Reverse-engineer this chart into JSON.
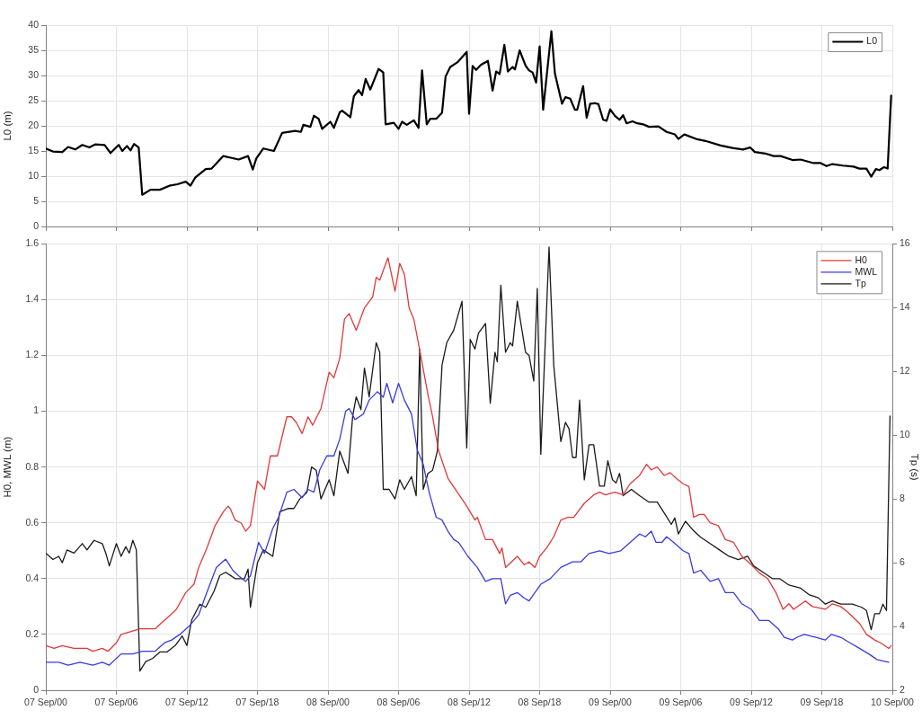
{
  "chart_data": [
    {
      "type": "line",
      "ylabel": "L0 (m)",
      "xlim": [
        "--09-07T00:00",
        "--09-10T00:00"
      ],
      "xticks": [
        {
          "value": "--09-07T00:00",
          "label": null
        },
        {
          "value": "--09-07T06:00",
          "label": null
        },
        {
          "value": "--09-07T12:00",
          "label": null
        },
        {
          "value": "--09-07T18:00",
          "label": null
        },
        {
          "value": "--09-08T00:00",
          "label": null
        },
        {
          "value": "--09-08T06:00",
          "label": null
        },
        {
          "value": "--09-08T12:00",
          "label": null
        },
        {
          "value": "--09-08T18:00",
          "label": null
        },
        {
          "value": "--09-09T00:00",
          "label": null
        },
        {
          "value": "--09-09T06:00",
          "label": null
        },
        {
          "value": "--09-09T12:00",
          "label": null
        },
        {
          "value": "--09-09T18:00",
          "label": null
        },
        {
          "value": "--09-10T00:00",
          "label": null
        }
      ],
      "ylim": [
        0,
        40
      ],
      "yticks": [
        0,
        5,
        10,
        15,
        20,
        25,
        30,
        35,
        40
      ],
      "grid": true,
      "legend": "top right",
      "marker": "none",
      "tick_labels": "y",
      "series": [
        {
          "name": "L0",
          "color": "#000000",
          "x": [
            "--09-07T00:00",
            "--09-07T00:36",
            "--09-07T01:24",
            "--09-07T01:54",
            "--09-07T02:30",
            "--09-07T03:06",
            "--09-07T03:42",
            "--09-07T04:12",
            "--09-07T05:00",
            "--09-07T05:30",
            "--09-07T06:12",
            "--09-07T06:30",
            "--09-07T06:54",
            "--09-07T07:12",
            "--09-07T07:30",
            "--09-07T07:54",
            "--09-07T08:12",
            "--09-07T08:54",
            "--09-07T09:42",
            "--09-07T10:30",
            "--09-07T11:12",
            "--09-07T11:54",
            "--09-07T12:18",
            "--09-07T12:42",
            "--09-07T13:36",
            "--09-07T14:06",
            "--09-07T15:06",
            "--09-07T16:24",
            "--09-07T17:12",
            "--09-07T17:36",
            "--09-07T17:54",
            "--09-07T18:30",
            "--09-07T19:24",
            "--09-07T20:06",
            "--09-07T21:12",
            "--09-07T21:42",
            "--09-07T21:54",
            "--09-07T22:30",
            "--09-07T22:48",
            "--09-07T23:12",
            "--09-07T23:30",
            "--09-08T00:12",
            "--09-08T00:30",
            "--09-08T01:00",
            "--09-08T01:12",
            "--09-08T01:54",
            "--09-08T02:12",
            "--09-08T02:36",
            "--09-08T02:54",
            "--09-08T03:12",
            "--09-08T03:36",
            "--09-08T04:18",
            "--09-08T04:42",
            "--09-08T04:54",
            "--09-08T05:36",
            "--09-08T06:00",
            "--09-08T06:18",
            "--09-08T06:42",
            "--09-08T07:18",
            "--09-08T07:42",
            "--09-08T08:00",
            "--09-08T08:24",
            "--09-08T08:42",
            "--09-08T09:12",
            "--09-08T09:42",
            "--09-08T10:00",
            "--09-08T10:24",
            "--09-08T11:00",
            "--09-08T11:48",
            "--09-08T12:00",
            "--09-08T12:18",
            "--09-08T12:36",
            "--09-08T13:00",
            "--09-08T13:36",
            "--09-08T14:00",
            "--09-08T14:18",
            "--09-08T14:36",
            "--09-08T15:00",
            "--09-08T15:18",
            "--09-08T15:42",
            "--09-08T15:54",
            "--09-08T16:18",
            "--09-08T16:48",
            "--09-08T17:06",
            "--09-08T17:24",
            "--09-08T17:42",
            "--09-08T18:00",
            "--09-08T18:18",
            "--09-08T19:00",
            "--09-08T19:18",
            "--09-08T19:54",
            "--09-08T20:12",
            "--09-08T20:36",
            "--09-08T21:00",
            "--09-08T21:12",
            "--09-08T21:42",
            "--09-08T22:00",
            "--09-08T22:18",
            "--09-08T22:42",
            "--09-08T23:00",
            "--09-08T23:24",
            "--09-08T23:42",
            "--09-09T00:00",
            "--09-09T00:24",
            "--09-09T00:48",
            "--09-09T01:06",
            "--09-09T01:24",
            "--09-09T01:54",
            "--09-09T02:18",
            "--09-09T02:48",
            "--09-09T03:18",
            "--09-09T04:06",
            "--09-09T04:48",
            "--09-09T05:30",
            "--09-09T05:48",
            "--09-09T06:18",
            "--09-09T07:18",
            "--09-09T08:06",
            "--09-09T09:24",
            "--09-09T10:24",
            "--09-09T11:18",
            "--09-09T11:54",
            "--09-09T12:18",
            "--09-09T13:12",
            "--09-09T13:54",
            "--09-09T14:30",
            "--09-09T15:30",
            "--09-09T16:12",
            "--09-09T17:18",
            "--09-09T17:54",
            "--09-09T18:24",
            "--09-09T18:54",
            "--09-09T19:48",
            "--09-09T20:42",
            "--09-09T21:12",
            "--09-09T21:48",
            "--09-09T22:12",
            "--09-09T22:36",
            "--09-09T22:54",
            "--09-09T23:18",
            "--09-09T23:36",
            "--09-09T23:54"
          ],
          "values": [
            15.5,
            14.9,
            14.8,
            15.8,
            15.3,
            16.2,
            15.7,
            16.3,
            16.2,
            14.6,
            16.2,
            15,
            16,
            15.1,
            16.4,
            15.7,
            6.3,
            7.3,
            7.3,
            8.1,
            8.4,
            8.9,
            8.1,
            9.7,
            11.4,
            11.5,
            14,
            13.3,
            14,
            11.3,
            13.5,
            15.5,
            15,
            18.6,
            19,
            18.8,
            20.2,
            19.8,
            22,
            21.4,
            19.4,
            20.8,
            19.6,
            22.7,
            23,
            21.7,
            25.9,
            27.1,
            26.1,
            29.3,
            27.2,
            31.3,
            30.6,
            20.3,
            20.6,
            19.4,
            20.8,
            20.2,
            21.1,
            19.6,
            31,
            20.3,
            21.4,
            21.4,
            22.6,
            29.8,
            31.7,
            32.6,
            34.7,
            22.4,
            31.9,
            31.1,
            32.1,
            32.9,
            27,
            30.8,
            30.3,
            36.1,
            30.8,
            31.7,
            31.2,
            35,
            32,
            31,
            30.6,
            28.6,
            35.8,
            23.2,
            38.8,
            30.4,
            24.4,
            25.7,
            25.4,
            23.2,
            23.2,
            27.9,
            21.6,
            24.4,
            24.5,
            24.3,
            21.2,
            21,
            23.3,
            22,
            21.2,
            22.1,
            20.5,
            20.9,
            20.5,
            20.3,
            19.8,
            19.9,
            18.8,
            18.3,
            17.4,
            18.3,
            17.4,
            17,
            16.1,
            15.6,
            15.3,
            15.7,
            14.8,
            14.5,
            14,
            14,
            13.2,
            13.3,
            12.6,
            12.6,
            12,
            12.4,
            12.1,
            11.9,
            11.5,
            11.5,
            9.9,
            11.4,
            11.2,
            11.8,
            11.5,
            26
          ]
        }
      ]
    },
    {
      "type": "line",
      "ylabel": "H0, MWL (m)",
      "y2label": "Tp (s)",
      "xlim": [
        "--09-07T00:00",
        "--09-10T00:00"
      ],
      "xticks": [
        {
          "value": "--09-07T00:00",
          "label": "07 Sep/00"
        },
        {
          "value": "--09-07T06:00",
          "label": "07 Sep/06"
        },
        {
          "value": "--09-07T12:00",
          "label": "07 Sep/12"
        },
        {
          "value": "--09-07T18:00",
          "label": "07 Sep/18"
        },
        {
          "value": "--09-08T00:00",
          "label": "08 Sep/00"
        },
        {
          "value": "--09-08T06:00",
          "label": "08 Sep/06"
        },
        {
          "value": "--09-08T12:00",
          "label": "08 Sep/12"
        },
        {
          "value": "--09-08T18:00",
          "label": "08 Sep/18"
        },
        {
          "value": "--09-09T00:00",
          "label": "09 Sep/00"
        },
        {
          "value": "--09-09T06:00",
          "label": "09 Sep/06"
        },
        {
          "value": "--09-09T12:00",
          "label": "09 Sep/12"
        },
        {
          "value": "--09-09T18:00",
          "label": "09 Sep/18"
        },
        {
          "value": "--09-10T00:00",
          "label": "10 Sep/00"
        }
      ],
      "ylim": [
        0,
        1.6
      ],
      "yticks": [
        0,
        0.2,
        0.4,
        0.6,
        0.8,
        1,
        1.2,
        1.4,
        1.6
      ],
      "y2lim": [
        2,
        16
      ],
      "y2ticks": [
        2,
        4,
        6,
        8,
        10,
        12,
        14,
        16
      ],
      "grid": true,
      "legend": "top right",
      "marker": "none",
      "series": [
        {
          "name": "H0",
          "color": "#e0393b",
          "x": [
            "--09-07T00:00",
            "--09-07T00:42",
            "--09-07T01:24",
            "--09-07T02:24",
            "--09-07T03:30",
            "--09-07T04:00",
            "--09-07T04:48",
            "--09-07T05:18",
            "--09-07T06:00",
            "--09-07T06:24",
            "--09-07T07:12",
            "--09-07T08:00",
            "--09-07T09:18",
            "--09-07T09:48",
            "--09-07T10:36",
            "--09-07T11:06",
            "--09-07T11:54",
            "--09-07T12:36",
            "--09-07T13:00",
            "--09-07T13:42",
            "--09-07T14:24",
            "--09-07T15:06",
            "--09-07T15:30",
            "--09-07T15:42",
            "--09-07T16:06",
            "--09-07T16:36",
            "--09-07T17:00",
            "--09-07T17:24",
            "--09-07T18:00",
            "--09-07T18:36",
            "--09-07T19:06",
            "--09-07T19:42",
            "--09-07T20:06",
            "--09-07T20:30",
            "--09-07T20:54",
            "--09-07T21:18",
            "--09-07T21:48",
            "--09-07T22:18",
            "--09-07T22:42",
            "--09-07T23:24",
            "--09-08T00:06",
            "--09-08T00:30",
            "--09-08T01:00",
            "--09-08T01:24",
            "--09-08T01:48",
            "--09-08T02:24",
            "--09-08T03:06",
            "--09-08T03:48",
            "--09-08T04:06",
            "--09-08T04:24",
            "--09-08T05:06",
            "--09-08T05:42",
            "--09-08T06:06",
            "--09-08T06:30",
            "--09-08T06:54",
            "--09-08T07:18",
            "--09-08T07:48",
            "--09-08T08:30",
            "--09-08T08:54",
            "--09-08T09:24",
            "--09-08T10:12",
            "--09-08T11:00",
            "--09-08T11:48",
            "--09-08T12:30",
            "--09-08T12:42",
            "--09-08T13:24",
            "--09-08T14:00",
            "--09-08T14:36",
            "--09-08T14:48",
            "--09-08T15:06",
            "--09-08T15:36",
            "--09-08T16:06",
            "--09-08T16:42",
            "--09-08T17:06",
            "--09-08T17:36",
            "--09-08T18:00",
            "--09-08T18:36",
            "--09-08T19:12",
            "--09-08T19:48",
            "--09-08T20:24",
            "--09-08T20:54",
            "--09-08T21:48",
            "--09-08T22:36",
            "--09-08T23:06",
            "--09-08T23:36",
            "--09-09T00:24",
            "--09-09T01:06",
            "--09-09T01:42",
            "--09-09T02:30",
            "--09-09T03:06",
            "--09-09T03:30",
            "--09-09T04:00",
            "--09-09T04:36",
            "--09-09T05:06",
            "--09-09T05:36",
            "--09-09T06:12",
            "--09-09T06:42",
            "--09-09T07:06",
            "--09-09T07:36",
            "--09-09T08:00",
            "--09-09T08:30",
            "--09-09T09:12",
            "--09-09T09:48",
            "--09-09T10:30",
            "--09-09T11:12",
            "--09-09T12:00",
            "--09-09T12:42",
            "--09-09T13:24",
            "--09-09T14:06",
            "--09-09T14:42",
            "--09-09T15:12",
            "--09-09T15:36",
            "--09-09T16:36",
            "--09-09T17:12",
            "--09-09T18:18",
            "--09-09T18:54",
            "--09-09T19:36",
            "--09-09T20:12",
            "--09-09T21:12",
            "--09-09T21:48",
            "--09-09T22:30",
            "--09-09T23:00",
            "--09-09T23:42",
            "--09-09T23:54"
          ],
          "values": [
            0.16,
            0.15,
            0.16,
            0.15,
            0.15,
            0.14,
            0.15,
            0.14,
            0.17,
            0.2,
            0.21,
            0.22,
            0.22,
            0.24,
            0.27,
            0.29,
            0.35,
            0.38,
            0.44,
            0.51,
            0.59,
            0.64,
            0.66,
            0.65,
            0.61,
            0.6,
            0.57,
            0.59,
            0.75,
            0.72,
            0.84,
            0.84,
            0.91,
            0.98,
            0.98,
            0.96,
            0.92,
            0.98,
            0.95,
            1.01,
            1.14,
            1.12,
            1.19,
            1.33,
            1.35,
            1.29,
            1.37,
            1.41,
            1.48,
            1.47,
            1.55,
            1.43,
            1.53,
            1.49,
            1.37,
            1.33,
            1.22,
            1.06,
            0.98,
            0.86,
            0.76,
            0.71,
            0.66,
            0.61,
            0.62,
            0.54,
            0.54,
            0.49,
            0.51,
            0.44,
            0.46,
            0.48,
            0.45,
            0.46,
            0.44,
            0.48,
            0.51,
            0.55,
            0.61,
            0.62,
            0.62,
            0.67,
            0.7,
            0.71,
            0.7,
            0.71,
            0.7,
            0.74,
            0.77,
            0.81,
            0.79,
            0.8,
            0.77,
            0.78,
            0.76,
            0.74,
            0.73,
            0.62,
            0.63,
            0.63,
            0.6,
            0.59,
            0.54,
            0.53,
            0.48,
            0.45,
            0.42,
            0.4,
            0.35,
            0.29,
            0.31,
            0.29,
            0.32,
            0.3,
            0.29,
            0.31,
            0.3,
            0.28,
            0.24,
            0.2,
            0.18,
            0.17,
            0.15,
            0.16
          ]
        },
        {
          "name": "MWL",
          "color": "#3a3ae0",
          "x": [
            "--09-07T00:00",
            "--09-07T01:06",
            "--09-07T01:54",
            "--09-07T02:54",
            "--09-07T04:00",
            "--09-07T04:48",
            "--09-07T05:24",
            "--09-07T06:24",
            "--09-07T07:24",
            "--09-07T08:12",
            "--09-07T09:18",
            "--09-07T10:06",
            "--09-07T10:42",
            "--09-07T11:24",
            "--09-07T12:12",
            "--09-07T13:00",
            "--09-07T13:36",
            "--09-07T14:30",
            "--09-07T15:18",
            "--09-07T15:54",
            "--09-07T16:24",
            "--09-07T17:00",
            "--09-07T17:24",
            "--09-07T18:06",
            "--09-07T18:36",
            "--09-07T19:18",
            "--09-07T19:48",
            "--09-07T20:30",
            "--09-07T21:06",
            "--09-07T21:48",
            "--09-07T22:18",
            "--09-07T22:48",
            "--09-07T23:18",
            "--09-07T23:54",
            "--09-08T00:30",
            "--09-08T01:00",
            "--09-08T01:30",
            "--09-08T01:48",
            "--09-08T02:18",
            "--09-08T03:00",
            "--09-08T03:30",
            "--09-08T04:12",
            "--09-08T04:42",
            "--09-08T05:00",
            "--09-08T05:30",
            "--09-08T06:00",
            "--09-08T06:30",
            "--09-08T07:06",
            "--09-08T07:36",
            "--09-08T08:06",
            "--09-08T08:36",
            "--09-08T09:12",
            "--09-08T09:42",
            "--09-08T10:12",
            "--09-08T10:42",
            "--09-08T11:06",
            "--09-08T11:54",
            "--09-08T12:42",
            "--09-08T13:24",
            "--09-08T14:00",
            "--09-08T14:42",
            "--09-08T15:06",
            "--09-08T15:30",
            "--09-08T16:06",
            "--09-08T16:42",
            "--09-08T17:06",
            "--09-08T17:36",
            "--09-08T18:06",
            "--09-08T18:54",
            "--09-08T19:48",
            "--09-08T20:48",
            "--09-08T21:30",
            "--09-08T22:12",
            "--09-08T23:06",
            "--09-08T23:54",
            "--09-09T00:54",
            "--09-09T01:42",
            "--09-09T02:30",
            "--09-09T03:00",
            "--09-09T03:30",
            "--09-09T03:54",
            "--09-09T04:24",
            "--09-09T04:48",
            "--09-09T05:24",
            "--09-09T06:12",
            "--09-09T06:42",
            "--09-09T07:06",
            "--09-09T07:42",
            "--09-09T08:30",
            "--09-09T09:12",
            "--09-09T09:48",
            "--09-09T10:30",
            "--09-09T11:12",
            "--09-09T12:00",
            "--09-09T12:42",
            "--09-09T13:30",
            "--09-09T14:18",
            "--09-09T14:48",
            "--09-09T15:30",
            "--09-09T15:54",
            "--09-09T16:30",
            "--09-09T17:30",
            "--09-09T18:18",
            "--09-09T18:48",
            "--09-09T19:36",
            "--09-09T20:24",
            "--09-09T21:12",
            "--09-09T22:00",
            "--09-09T22:42",
            "--09-09T23:42"
          ],
          "values": [
            0.1,
            0.1,
            0.09,
            0.1,
            0.09,
            0.1,
            0.09,
            0.13,
            0.13,
            0.14,
            0.14,
            0.17,
            0.18,
            0.2,
            0.23,
            0.27,
            0.34,
            0.44,
            0.47,
            0.43,
            0.41,
            0.39,
            0.41,
            0.53,
            0.49,
            0.58,
            0.62,
            0.71,
            0.72,
            0.69,
            0.72,
            0.71,
            0.79,
            0.84,
            0.84,
            0.9,
            1,
            1.01,
            0.97,
            0.99,
            1.04,
            1.07,
            1.05,
            1.1,
            1.03,
            1.1,
            1.04,
            0.99,
            0.86,
            0.81,
            0.71,
            0.62,
            0.61,
            0.57,
            0.54,
            0.53,
            0.48,
            0.44,
            0.39,
            0.4,
            0.4,
            0.31,
            0.34,
            0.35,
            0.33,
            0.32,
            0.35,
            0.38,
            0.4,
            0.44,
            0.46,
            0.46,
            0.49,
            0.5,
            0.49,
            0.5,
            0.53,
            0.56,
            0.55,
            0.57,
            0.53,
            0.53,
            0.55,
            0.53,
            0.5,
            0.49,
            0.42,
            0.43,
            0.39,
            0.4,
            0.35,
            0.35,
            0.31,
            0.29,
            0.25,
            0.25,
            0.22,
            0.19,
            0.18,
            0.19,
            0.2,
            0.19,
            0.18,
            0.2,
            0.19,
            0.17,
            0.15,
            0.13,
            0.11,
            0.1
          ]
        },
        {
          "name": "Tp",
          "color": "#1a1a1a",
          "axis": "y2",
          "x": [
            "--09-07T00:00",
            "--09-07T00:36",
            "--09-07T01:06",
            "--09-07T01:24",
            "--09-07T01:48",
            "--09-07T02:24",
            "--09-07T03:06",
            "--09-07T03:30",
            "--09-07T04:06",
            "--09-07T04:48",
            "--09-07T05:06",
            "--09-07T05:24",
            "--09-07T06:00",
            "--09-07T06:24",
            "--09-07T06:48",
            "--09-07T07:06",
            "--09-07T07:24",
            "--09-07T07:42",
            "--09-07T08:00",
            "--09-07T08:30",
            "--09-07T09:06",
            "--09-07T09:42",
            "--09-07T10:18",
            "--09-07T11:00",
            "--09-07T11:36",
            "--09-07T12:00",
            "--09-07T12:24",
            "--09-07T13:06",
            "--09-07T13:36",
            "--09-07T14:18",
            "--09-07T14:48",
            "--09-07T15:18",
            "--09-07T16:06",
            "--09-07T16:54",
            "--09-07T17:12",
            "--09-07T17:24",
            "--09-07T18:00",
            "--09-07T18:30",
            "--09-07T19:18",
            "--09-07T19:54",
            "--09-07T20:36",
            "--09-07T21:06",
            "--09-07T21:36",
            "--09-07T22:12",
            "--09-07T22:36",
            "--09-07T23:00",
            "--09-07T23:24",
            "--09-08T00:06",
            "--09-08T00:30",
            "--09-08T01:00",
            "--09-08T01:42",
            "--09-08T02:06",
            "--09-08T02:24",
            "--09-08T02:48",
            "--09-08T03:06",
            "--09-08T03:30",
            "--09-08T04:06",
            "--09-08T04:24",
            "--09-08T04:42",
            "--09-08T05:12",
            "--09-08T05:42",
            "--09-08T06:06",
            "--09-08T06:30",
            "--09-08T07:06",
            "--09-08T07:30",
            "--09-08T07:48",
            "--09-08T08:06",
            "--09-08T08:30",
            "--09-08T08:54",
            "--09-08T09:18",
            "--09-08T09:42",
            "--09-08T10:06",
            "--09-08T10:42",
            "--09-08T11:24",
            "--09-08T11:48",
            "--09-08T12:06",
            "--09-08T12:30",
            "--09-08T12:48",
            "--09-08T13:24",
            "--09-08T13:48",
            "--09-08T14:12",
            "--09-08T14:24",
            "--09-08T14:42",
            "--09-08T15:06",
            "--09-08T15:30",
            "--09-08T15:42",
            "--09-08T16:06",
            "--09-08T16:48",
            "--09-08T17:06",
            "--09-08T17:30",
            "--09-08T17:48",
            "--09-08T18:06",
            "--09-08T18:48",
            "--09-08T19:12",
            "--09-08T19:48",
            "--09-08T20:12",
            "--09-08T20:30",
            "--09-08T20:48",
            "--09-08T21:06",
            "--09-08T21:24",
            "--09-08T21:48",
            "--09-08T22:12",
            "--09-08T22:36",
            "--09-08T23:06",
            "--09-08T23:30",
            "--09-08T23:48",
            "--09-09T00:12",
            "--09-09T00:30",
            "--09-09T00:48",
            "--09-09T01:06",
            "--09-09T01:48",
            "--09-09T02:30",
            "--09-09T03:18",
            "--09-09T04:00",
            "--09-09T04:42",
            "--09-09T05:12",
            "--09-09T05:30",
            "--09-09T05:48",
            "--09-09T06:24",
            "--09-09T07:06",
            "--09-09T07:42",
            "--09-09T08:30",
            "--09-09T09:18",
            "--09-09T10:06",
            "--09-09T10:54",
            "--09-09T11:42",
            "--09-09T12:12",
            "--09-09T13:00",
            "--09-09T13:48",
            "--09-09T14:24",
            "--09-09T15:12",
            "--09-09T16:12",
            "--09-09T16:54",
            "--09-09T17:42",
            "--09-09T18:18",
            "--09-09T18:54",
            "--09-09T19:36",
            "--09-09T20:36",
            "--09-09T21:24",
            "--09-09T21:48",
            "--09-09T22:12",
            "--09-09T22:30",
            "--09-09T22:54",
            "--09-09T23:12",
            "--09-09T23:30",
            "--09-09T23:48"
          ],
          "values": [
            6.3,
            6.1,
            6.2,
            6,
            6.4,
            6.3,
            6.6,
            6.4,
            6.7,
            6.6,
            6.3,
            5.9,
            6.6,
            6.2,
            6.5,
            6.3,
            6.7,
            6.4,
            2.6,
            2.9,
            3,
            3.2,
            3.2,
            3.4,
            3.7,
            3.4,
            4.2,
            4.7,
            4.6,
            5.1,
            5.6,
            5.7,
            5.5,
            5.5,
            5.8,
            4.6,
            6,
            6.4,
            6.2,
            7.6,
            7.7,
            7.7,
            8,
            8.2,
            9,
            8.9,
            8,
            8.6,
            8.1,
            9.5,
            8.8,
            10.6,
            11.2,
            10.8,
            12.1,
            11.2,
            12.9,
            12.6,
            8.3,
            8.3,
            8,
            8.6,
            8.3,
            8.7,
            8.1,
            12.7,
            8.3,
            8.8,
            8.9,
            9.5,
            12.2,
            12.9,
            13.3,
            14.2,
            9.6,
            13,
            12.7,
            13.2,
            13.5,
            11,
            12.6,
            12.3,
            14.7,
            12.6,
            12.9,
            12.8,
            14.2,
            12.6,
            12.5,
            11.7,
            14.6,
            9.4,
            15.9,
            12.2,
            9.8,
            10.4,
            10.2,
            9.3,
            9.3,
            11.1,
            8.6,
            9.7,
            9.7,
            8.4,
            8.4,
            9.2,
            8.6,
            8.5,
            8.8,
            8.1,
            8.3,
            8.1,
            7.9,
            7.9,
            7.5,
            7.2,
            7.4,
            6.9,
            7.3,
            7,
            6.8,
            6.6,
            6.4,
            6.2,
            6.1,
            6.2,
            5.9,
            5.7,
            5.5,
            5.5,
            5.3,
            5.2,
            5,
            4.9,
            4.7,
            4.8,
            4.7,
            4.7,
            4.6,
            4.5,
            3.9,
            4.4,
            4.4,
            4.7,
            4.5,
            10.6
          ]
        }
      ]
    }
  ]
}
